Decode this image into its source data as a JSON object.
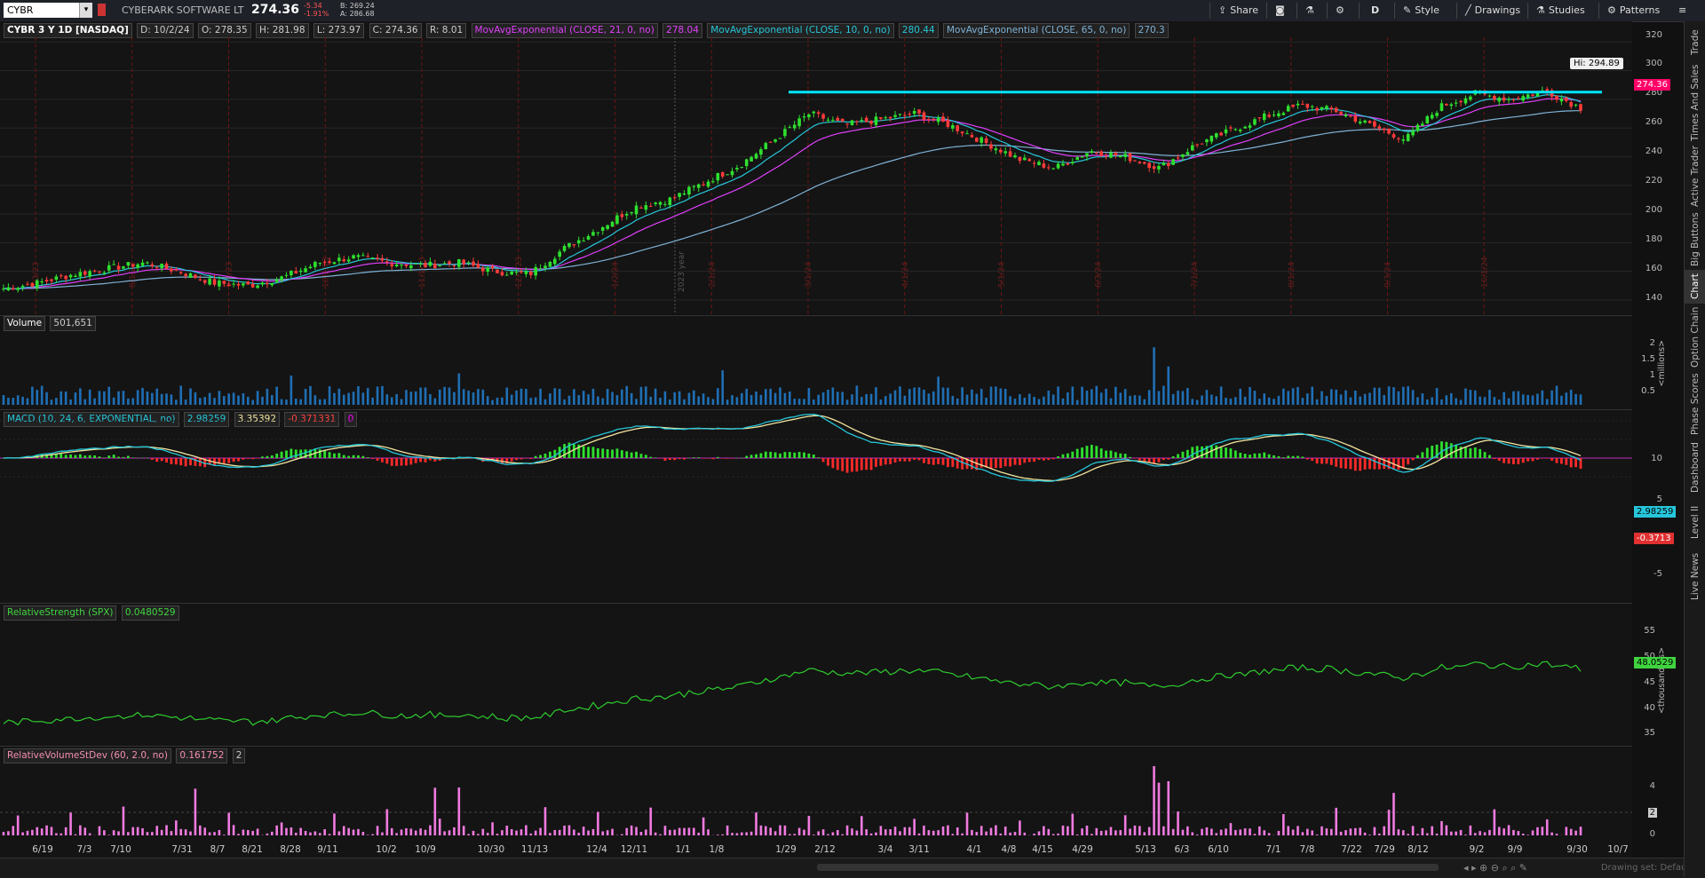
{
  "toolbar": {
    "symbol": "CYBR",
    "company": "CYBERARK SOFTWARE LT",
    "last": "274.36",
    "change": "-5.34",
    "change_pct": "-1.91%",
    "bid": "B: 269.24",
    "ask": "A: 286.68",
    "share": "Share",
    "aggregation": "D",
    "style": "Style",
    "drawings": "Drawings",
    "studies": "Studies",
    "patterns": "Patterns"
  },
  "price_panel": {
    "title": "CYBR 3 Y 1D [NASDAQ]",
    "date": "D: 10/2/24",
    "open": "O: 278.35",
    "high": "H: 281.98",
    "low": "L: 273.97",
    "close": "C: 274.36",
    "range": "R: 8.01",
    "ema21_label": "MovAvgExponential (CLOSE, 21, 0, no)",
    "ema21_val": "278.04",
    "ema10_label": "MovAvgExponential (CLOSE, 10, 0, no)",
    "ema10_val": "280.44",
    "ema65_label": "MovAvgExponential (CLOSE, 65, 0, no)",
    "ema65_val": "270.3",
    "hi_callout": "Hi: 294.89",
    "last_tag": "274.36",
    "y_ticks": [
      "320",
      "300",
      "280",
      "260",
      "240",
      "220",
      "200",
      "180",
      "160",
      "140"
    ],
    "year_mark": "2023 year",
    "dashed_dates": [
      "7/3/23",
      "8/1/23",
      "9/1/23",
      "10/2/23",
      "11/1/23",
      "12/1/23",
      "1/2/24",
      "2/1/24",
      "3/1/24",
      "4/1/24",
      "5/1/24",
      "6/3/24",
      "7/1/24",
      "8/1/24",
      "9/3/24",
      "10/1/24"
    ],
    "colors": {
      "ema10": "#26c6da",
      "ema21": "#e040fb",
      "ema65": "#7fb2d6",
      "up": "#2ee02e",
      "down": "#ff3b3b",
      "hline": "#00e5ff"
    }
  },
  "volume_panel": {
    "label": "Volume",
    "value": "501,651",
    "y_ticks": [
      "2",
      "1.5",
      "1",
      "0.5"
    ],
    "unit": "<millions>"
  },
  "macd_panel": {
    "label": "MACD (10, 24, 6, EXPONENTIAL, no)",
    "v1": "2.98259",
    "v2": "3.35392",
    "v3": "-0.371331",
    "v4": "0",
    "y_ticks": [
      "10",
      "5",
      "-5"
    ],
    "tag1": "2.98259",
    "tag2": "-0.3713"
  },
  "rs_panel": {
    "label": "RelativeStrength (SPX)",
    "value": "0.0480529",
    "y_ticks": [
      "55",
      "50",
      "45",
      "40",
      "35"
    ],
    "tag": "48.0529",
    "unit": "<thousandths>"
  },
  "rvsd_panel": {
    "label": "RelativeVolumeStDev (60, 2.0, no)",
    "value": "0.161752",
    "v2": "2",
    "y_ticks": [
      "4",
      "2",
      "0"
    ]
  },
  "x_axis": [
    "6/19",
    "7/3",
    "7/10",
    "7/31",
    "8/7",
    "8/21",
    "8/28",
    "9/11",
    "10/2",
    "10/9",
    "10/30",
    "11/13",
    "12/4",
    "12/11",
    "1/1",
    "1/8",
    "1/29",
    "2/12",
    "3/4",
    "3/11",
    "4/1",
    "4/8",
    "4/15",
    "4/29",
    "5/13",
    "6/3",
    "6/10",
    "7/1",
    "7/8",
    "7/22",
    "7/29",
    "8/12",
    "9/2",
    "9/9",
    "9/30",
    "10/7"
  ],
  "right_tabs": [
    "Trade",
    "Times And Sales",
    "Active Trader",
    "Big Buttons",
    "Chart",
    "Option Chain",
    "Phase Scores",
    "Dashboard",
    "Level II",
    "Live News"
  ],
  "footer": {
    "drawing_set": "Drawing set: Default"
  },
  "chart_data": {
    "type": "candlestick",
    "x_start": "6/19/23",
    "x_end": "10/2/24",
    "ylim": [
      135,
      322
    ],
    "close_approx": [
      148,
      152,
      158,
      162,
      166,
      160,
      152,
      150,
      156,
      166,
      170,
      166,
      164,
      166,
      160,
      158,
      176,
      190,
      205,
      210,
      222,
      234,
      252,
      270,
      262,
      266,
      270,
      262,
      250,
      238,
      232,
      244,
      240,
      232,
      248,
      258,
      268,
      276,
      272,
      262,
      252,
      275,
      284,
      280,
      286,
      274
    ],
    "hline_level": 285,
    "high_marker": 294.89
  }
}
